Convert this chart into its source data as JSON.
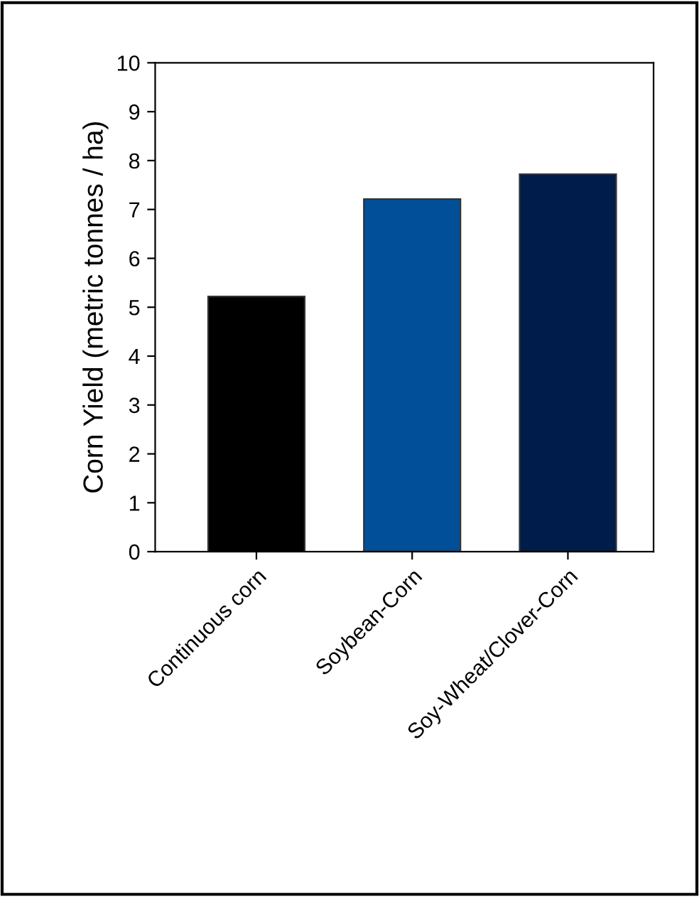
{
  "chart_data": {
    "type": "bar",
    "ylabel": "Corn Yield (metric tonnes / ha)",
    "categories": [
      "Continuous corn",
      "Soybean-Corn",
      "Soy-Wheat/Clover-Corn"
    ],
    "values": [
      5.22,
      7.21,
      7.72
    ],
    "colors": [
      "#000000",
      "#004f98",
      "#001c4a"
    ],
    "ylim": [
      0,
      10
    ],
    "yticks": [
      0,
      1,
      2,
      3,
      4,
      5,
      6,
      7,
      8,
      9,
      10
    ],
    "grid": false,
    "legend": false
  }
}
